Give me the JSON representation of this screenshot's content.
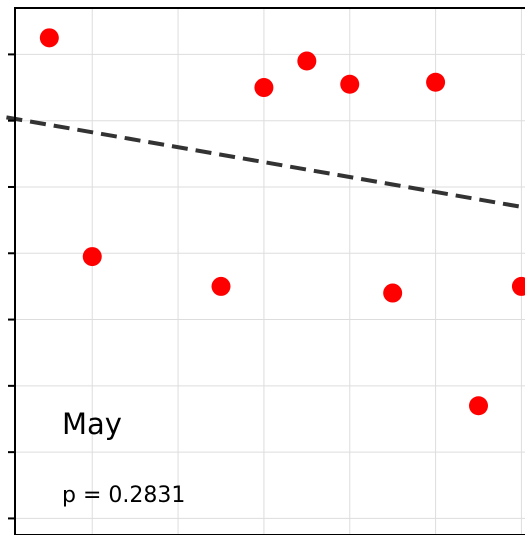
{
  "chart_data": {
    "type": "scatter",
    "title": "",
    "xlabel": "",
    "ylabel": "",
    "x_range": [
      -0.8,
      11.2
    ],
    "y_range": [
      -0.25,
      7.7
    ],
    "x_gridlines": [
      1,
      3,
      5,
      7,
      9,
      11
    ],
    "y_gridlines": [
      0,
      1,
      2,
      3,
      4,
      5,
      6,
      7
    ],
    "grid": true,
    "legend": "none",
    "points": [
      {
        "x": 0,
        "y": 7.25
      },
      {
        "x": 1,
        "y": 3.95
      },
      {
        "x": 4,
        "y": 3.5
      },
      {
        "x": 5,
        "y": 6.5
      },
      {
        "x": 6,
        "y": 6.9
      },
      {
        "x": 7,
        "y": 6.55
      },
      {
        "x": 8,
        "y": 3.4
      },
      {
        "x": 9,
        "y": 6.58
      },
      {
        "x": 10,
        "y": 1.7
      },
      {
        "x": 11,
        "y": 3.5
      }
    ],
    "trend_line": {
      "x": [
        -1,
        11
      ],
      "y": [
        6.05,
        4.7
      ]
    },
    "annotations": {
      "label": "May",
      "p_value": "p = 0.2831"
    },
    "colors": {
      "points": "#ff0000",
      "trend": "#333333",
      "grid": "#dddddd",
      "frame": "#000000"
    }
  }
}
